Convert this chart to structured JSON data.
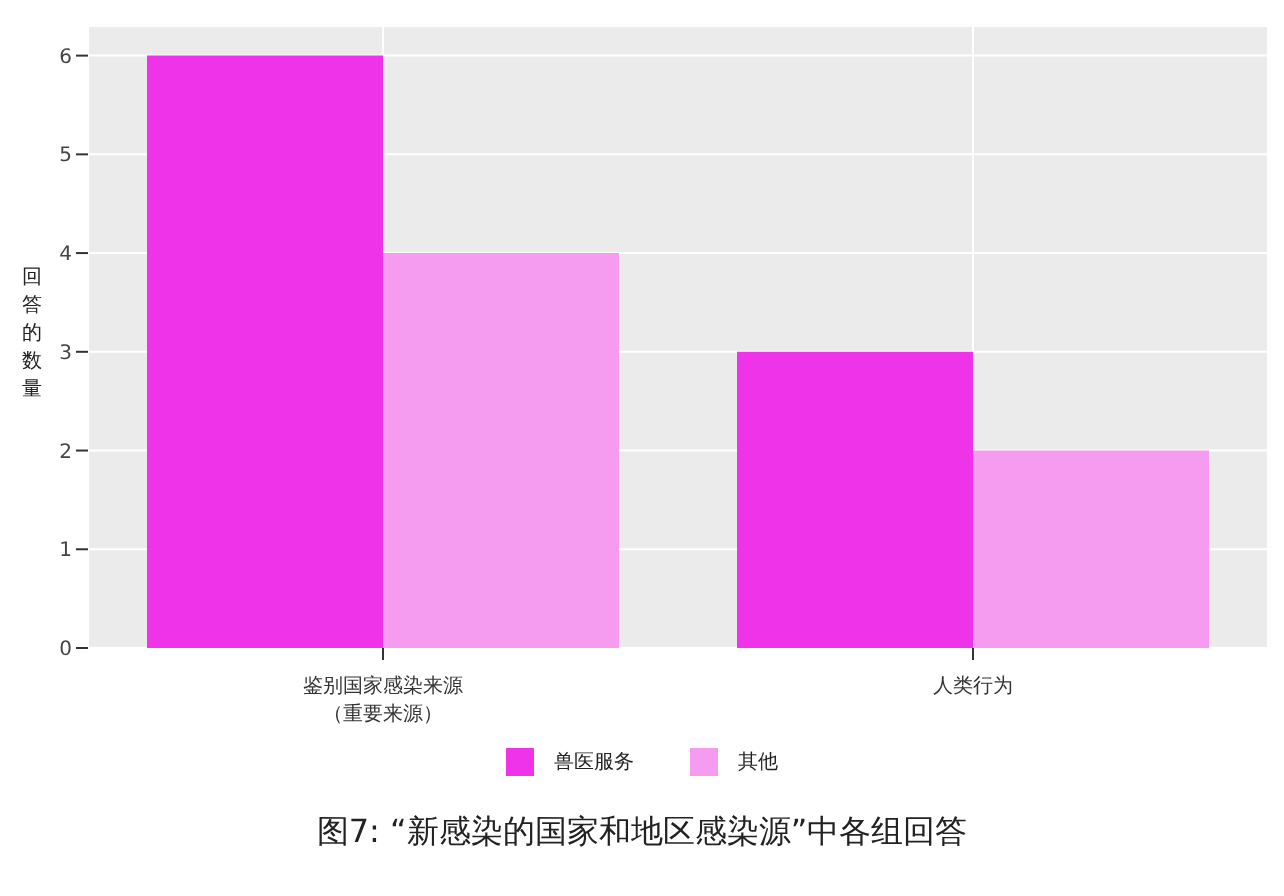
{
  "chart_data": {
    "type": "bar",
    "title": "图7: “新感染的国家和地区感染源”中各组回答",
    "ylabel": "回答的数量",
    "categories": [
      "鉴别国家感染来源（重要来源）",
      "人类行为"
    ],
    "series": [
      {
        "name": "兽医服务",
        "color": "#ee33e8",
        "values": [
          6,
          3
        ]
      },
      {
        "name": "其他",
        "color": "#f59cf0",
        "values": [
          4,
          2
        ]
      }
    ],
    "ylim": [
      0,
      6.3
    ],
    "yticks": [
      0,
      1,
      2,
      3,
      4,
      5,
      6
    ],
    "grid": true,
    "legend": "bottom"
  }
}
